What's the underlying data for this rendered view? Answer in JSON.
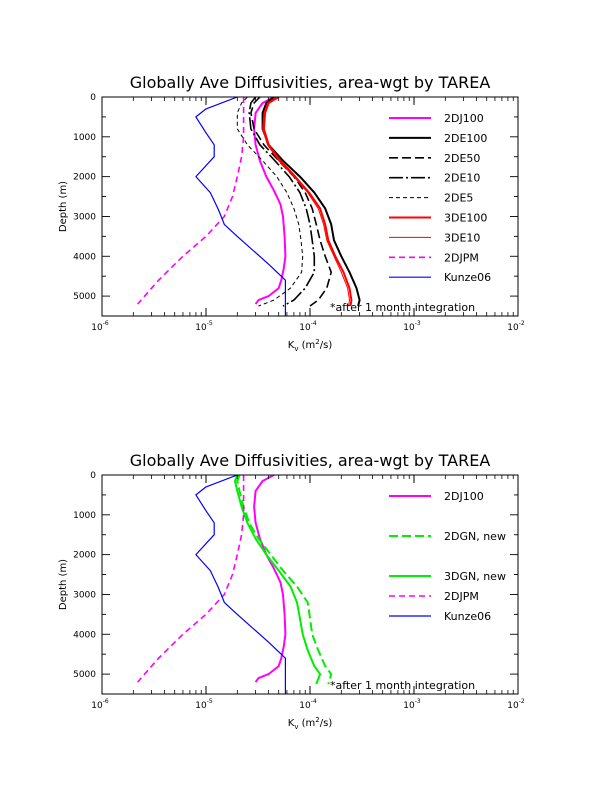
{
  "chart_data": [
    {
      "type": "line",
      "title": "Globally Ave Diffusivities, area-wgt by TAREA",
      "xlabel": "K_v (m^2/s)",
      "ylabel": "Depth (m)",
      "xscale": "log",
      "xlim": [
        1e-06,
        0.01
      ],
      "ylim": [
        5500,
        0
      ],
      "xticks": [
        1e-06,
        1e-05,
        0.0001,
        0.001,
        0.01
      ],
      "xtick_exponents": [
        "-6",
        "-5",
        "-4",
        "-3",
        "-2"
      ],
      "yticks": [
        0,
        1000,
        2000,
        3000,
        4000,
        5000
      ],
      "ytick_labels": [
        "0",
        "1000",
        "2000",
        "3000",
        "4000",
        "5000"
      ],
      "legend_position": "right",
      "annotation": "*after 1 month integration",
      "series": [
        {
          "name": "2DJ100",
          "color": "#ff00ff",
          "width": 2.0,
          "dash": "",
          "x": [
            4.5e-05,
            3.5e-05,
            3e-05,
            2.9e-05,
            3e-05,
            3.3e-05,
            3.8e-05,
            4.4e-05,
            4.8e-05,
            5.2e-05,
            5.5e-05,
            5.7e-05,
            5.8e-05,
            5.6e-05,
            5.3e-05,
            5e-05,
            4e-05,
            3.2e-05,
            3e-05
          ],
          "y": [
            0,
            150,
            400,
            800,
            1200,
            1600,
            2000,
            2300,
            2500,
            2700,
            3000,
            3500,
            4000,
            4300,
            4600,
            4800,
            5000,
            5100,
            5200
          ]
        },
        {
          "name": "2DE100",
          "color": "#000000",
          "width": 2.0,
          "dash": "",
          "x": [
            4.5e-05,
            3.8e-05,
            3.5e-05,
            3.5e-05,
            4e-05,
            5.5e-05,
            8e-05,
            0.00011,
            0.00014,
            0.00016,
            0.00017,
            0.0002,
            0.00024,
            0.00028,
            0.0003,
            0.00029
          ],
          "y": [
            0,
            150,
            400,
            800,
            1200,
            1600,
            2000,
            2400,
            2800,
            3200,
            3600,
            4000,
            4400,
            4800,
            5100,
            5250
          ]
        },
        {
          "name": "2DE50",
          "color": "#000000",
          "width": 1.6,
          "dash": "9,4",
          "x": [
            3.3e-05,
            2.9e-05,
            2.7e-05,
            2.9e-05,
            3.6e-05,
            5e-05,
            7e-05,
            9e-05,
            0.000105,
            0.000115,
            0.000125,
            0.00014,
            0.00016,
            0.000145,
            0.00012,
            0.0001
          ],
          "y": [
            0,
            150,
            400,
            800,
            1200,
            1600,
            2000,
            2400,
            2800,
            3200,
            3600,
            4000,
            4400,
            4800,
            5100,
            5250
          ]
        },
        {
          "name": "2DE10",
          "color": "#000000",
          "width": 1.6,
          "dash": "14,3,2,3",
          "x": [
            3e-05,
            2.7e-05,
            2.6e-05,
            2.7e-05,
            3.3e-05,
            4.6e-05,
            6.3e-05,
            8e-05,
            9.2e-05,
            0.0001,
            0.000105,
            0.00011,
            0.00011,
            9e-05,
            7e-05,
            5.5e-05
          ],
          "y": [
            0,
            150,
            400,
            800,
            1200,
            1600,
            2000,
            2400,
            2800,
            3200,
            3600,
            4000,
            4400,
            4800,
            5100,
            5250
          ]
        },
        {
          "name": "2DE5",
          "color": "#000000",
          "width": 1.0,
          "dash": "4,3",
          "x": [
            2.5e-05,
            2.2e-05,
            2e-05,
            2e-05,
            2.5e-05,
            3.5e-05,
            4.8e-05,
            6e-05,
            7e-05,
            7.8e-05,
            8.2e-05,
            8.5e-05,
            8.3e-05,
            6.5e-05,
            4.5e-05,
            3.2e-05
          ],
          "y": [
            0,
            150,
            400,
            800,
            1200,
            1600,
            2000,
            2400,
            2800,
            3200,
            3600,
            4000,
            4400,
            4800,
            5100,
            5250
          ]
        },
        {
          "name": "3DE100",
          "color": "#ff0000",
          "width": 2.0,
          "dash": "",
          "x": [
            5e-05,
            4e-05,
            3.7e-05,
            3.6e-05,
            4e-05,
            5.2e-05,
            7.2e-05,
            9.8e-05,
            0.000125,
            0.00014,
            0.00015,
            0.000175,
            0.00021,
            0.00024,
            0.00025,
            0.000245
          ],
          "y": [
            0,
            150,
            400,
            800,
            1200,
            1600,
            2000,
            2400,
            2800,
            3200,
            3600,
            4000,
            4400,
            4800,
            5100,
            5250
          ]
        },
        {
          "name": "3DE10",
          "color": "#ff0000",
          "width": 1.0,
          "dash": "",
          "x": [
            4.8e-05,
            3.9e-05,
            3.6e-05,
            3.5e-05,
            3.9e-05,
            5e-05,
            7e-05,
            9.5e-05,
            0.00012,
            0.000135,
            0.000145,
            0.00017,
            0.0002,
            0.00023,
            0.00024,
            0.000235
          ],
          "y": [
            0,
            150,
            400,
            800,
            1200,
            1600,
            2000,
            2400,
            2800,
            3200,
            3600,
            4000,
            4400,
            4800,
            5100,
            5250
          ]
        },
        {
          "name": "2DJPM",
          "color": "#ff00ff",
          "width": 1.6,
          "dash": "6,4",
          "x": [
            2.3e-05,
            2.3e-05,
            2.3e-05,
            2.2e-05,
            2e-05,
            1.8e-05,
            1.5e-05,
            1e-05,
            6e-06,
            3.5e-06,
            2.2e-06
          ],
          "y": [
            0,
            500,
            1000,
            1500,
            2000,
            2500,
            3000,
            3500,
            4000,
            4600,
            5200
          ]
        },
        {
          "name": "Kunze06",
          "color": "#0000ff",
          "width": 1.2,
          "dash": "",
          "x": [
            2e-05,
            1e-05,
            8e-06,
            1e-05,
            1.2e-05,
            1.2e-05,
            8e-06,
            1.1e-05,
            1.3e-05,
            1.4e-05,
            1.5e-05,
            2e-05,
            4e-05,
            5.8e-05,
            5.8e-05
          ],
          "y": [
            0,
            300,
            500,
            900,
            1200,
            1500,
            2000,
            2400,
            2800,
            3000,
            3200,
            3500,
            4200,
            4600,
            5500
          ]
        }
      ]
    },
    {
      "type": "line",
      "title": "Globally Ave Diffusivities, area-wgt by TAREA",
      "xlabel": "K_v (m^2/s)",
      "ylabel": "Depth (m)",
      "xscale": "log",
      "xlim": [
        1e-06,
        0.01
      ],
      "ylim": [
        5500,
        0
      ],
      "xticks": [
        1e-06,
        1e-05,
        0.0001,
        0.001,
        0.01
      ],
      "xtick_exponents": [
        "-6",
        "-5",
        "-4",
        "-3",
        "-2"
      ],
      "yticks": [
        0,
        1000,
        2000,
        3000,
        4000,
        5000
      ],
      "ytick_labels": [
        "0",
        "1000",
        "2000",
        "3000",
        "4000",
        "5000"
      ],
      "legend_position": "right",
      "annotation": "*after 1 month integration",
      "series": [
        {
          "name": "2DJ100",
          "color": "#ff00ff",
          "width": 2.0,
          "dash": "",
          "x": [
            4.5e-05,
            3.5e-05,
            3e-05,
            2.9e-05,
            3e-05,
            3.3e-05,
            3.8e-05,
            4.4e-05,
            4.8e-05,
            5.2e-05,
            5.5e-05,
            5.7e-05,
            5.8e-05,
            5.6e-05,
            5.3e-05,
            5e-05,
            4e-05,
            3.2e-05,
            3e-05
          ],
          "y": [
            0,
            150,
            400,
            800,
            1200,
            1600,
            2000,
            2300,
            2500,
            2700,
            3000,
            3500,
            4000,
            4300,
            4600,
            4800,
            5000,
            5100,
            5200
          ]
        },
        {
          "name": "2DGN, new",
          "color": "#00ee00",
          "width": 2.0,
          "dash": "9,4",
          "x": [
            2.1e-05,
            2e-05,
            2.1e-05,
            2.3e-05,
            2.6e-05,
            3.2e-05,
            4.2e-05,
            5.5e-05,
            7.5e-05,
            9.5e-05,
            0.0001,
            0.000105,
            0.00012,
            0.00014,
            0.00016,
            0.00015
          ],
          "y": [
            0,
            150,
            400,
            800,
            1200,
            1600,
            2000,
            2400,
            2800,
            3200,
            3600,
            4000,
            4400,
            4800,
            5000,
            5250
          ]
        },
        {
          "name": "3DGN, new",
          "color": "#00ee00",
          "width": 2.0,
          "dash": "",
          "x": [
            2e-05,
            1.9e-05,
            2e-05,
            2.2e-05,
            2.5e-05,
            3e-05,
            3.8e-05,
            5e-05,
            6.5e-05,
            7.5e-05,
            8e-05,
            8.5e-05,
            9.5e-05,
            0.00011,
            0.000125,
            0.000115
          ],
          "y": [
            0,
            150,
            400,
            800,
            1200,
            1600,
            2000,
            2400,
            2800,
            3200,
            3600,
            4000,
            4400,
            4800,
            5000,
            5250
          ]
        },
        {
          "name": "2DJPM",
          "color": "#ff00ff",
          "width": 1.6,
          "dash": "6,4",
          "x": [
            2.3e-05,
            2.3e-05,
            2.3e-05,
            2.2e-05,
            2e-05,
            1.8e-05,
            1.5e-05,
            1e-05,
            6e-06,
            3.5e-06,
            2.2e-06
          ],
          "y": [
            0,
            500,
            1000,
            1500,
            2000,
            2500,
            3000,
            3500,
            4000,
            4600,
            5200
          ]
        },
        {
          "name": "Kunze06",
          "color": "#0000ff",
          "width": 1.2,
          "dash": "",
          "x": [
            2e-05,
            1e-05,
            8e-06,
            1e-05,
            1.2e-05,
            1.2e-05,
            8e-06,
            1.1e-05,
            1.3e-05,
            1.4e-05,
            1.5e-05,
            2e-05,
            4e-05,
            5.8e-05,
            5.8e-05
          ],
          "y": [
            0,
            300,
            500,
            900,
            1200,
            1500,
            2000,
            2400,
            2800,
            3000,
            3200,
            3500,
            4200,
            4600,
            5500
          ]
        }
      ]
    }
  ]
}
